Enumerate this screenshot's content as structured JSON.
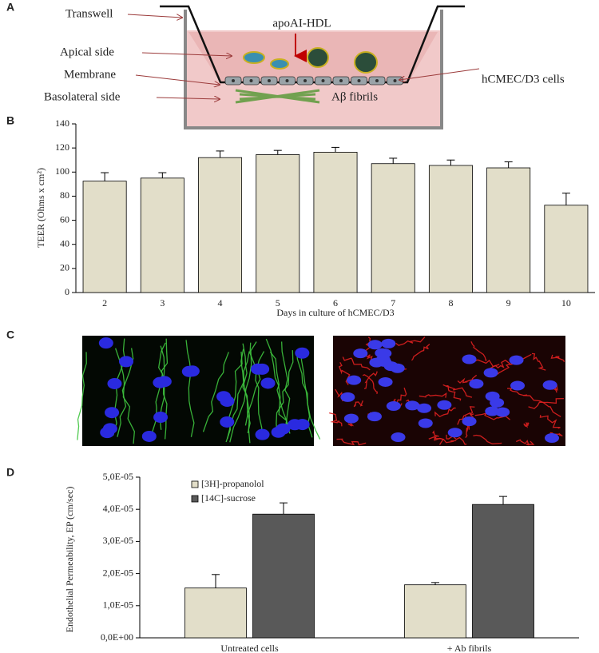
{
  "panel_labels": [
    "A",
    "B",
    "C",
    "D"
  ],
  "diagram": {
    "transwell": "Transwell",
    "apical": "Apical side",
    "membrane": "Membrane",
    "basolateral": "Basolateral side",
    "treatment": "apoAI-HDL",
    "cells": "hCMEC/D3 cells",
    "fibrils": "Aβ fibrils"
  },
  "chart_data": [
    {
      "type": "bar",
      "x_label": "Days in culture of hCMEC/D3",
      "y_label": "TEER (Ohms x cm²)",
      "categories": [
        "2",
        "3",
        "4",
        "5",
        "6",
        "7",
        "8",
        "9",
        "10"
      ],
      "values": [
        92.5,
        95,
        112,
        114.5,
        116.5,
        107,
        105.5,
        103.5,
        72.5
      ],
      "errors": [
        7,
        4.5,
        5.5,
        3.5,
        4,
        4.5,
        4.5,
        5,
        10
      ],
      "color": "#e2dec9",
      "ylim": [
        0,
        140
      ],
      "yticks": [
        0,
        20,
        40,
        60,
        80,
        100,
        120,
        140
      ]
    },
    {
      "type": "bar",
      "y_label": "Endothelial Permeability, EP (cm/sec)",
      "categories": [
        "Untreated cells",
        "+ Ab fibrils"
      ],
      "series": [
        {
          "name": "[3H]-propanolol",
          "color": "#e2dec9",
          "values": [
            1.55e-05,
            1.65e-05
          ],
          "errors": [
            4.2e-06,
            7e-07
          ]
        },
        {
          "name": "[14C]-sucrose",
          "color": "#595959",
          "values": [
            3.85e-05,
            4.15e-05
          ],
          "errors": [
            3.5e-06,
            2.5e-06
          ]
        }
      ],
      "ylim": [
        0,
        5e-05
      ],
      "yticks": [
        {
          "value": 0,
          "label": "0,0E+00"
        },
        {
          "value": 1e-05,
          "label": "1,0E-05"
        },
        {
          "value": 2e-05,
          "label": "2,0E-05"
        },
        {
          "value": 3e-05,
          "label": "3,0E-05"
        },
        {
          "value": 4e-05,
          "label": "4,0E-05"
        },
        {
          "value": 5e-05,
          "label": "5,0E-05"
        }
      ],
      "legend": "upper left"
    }
  ]
}
